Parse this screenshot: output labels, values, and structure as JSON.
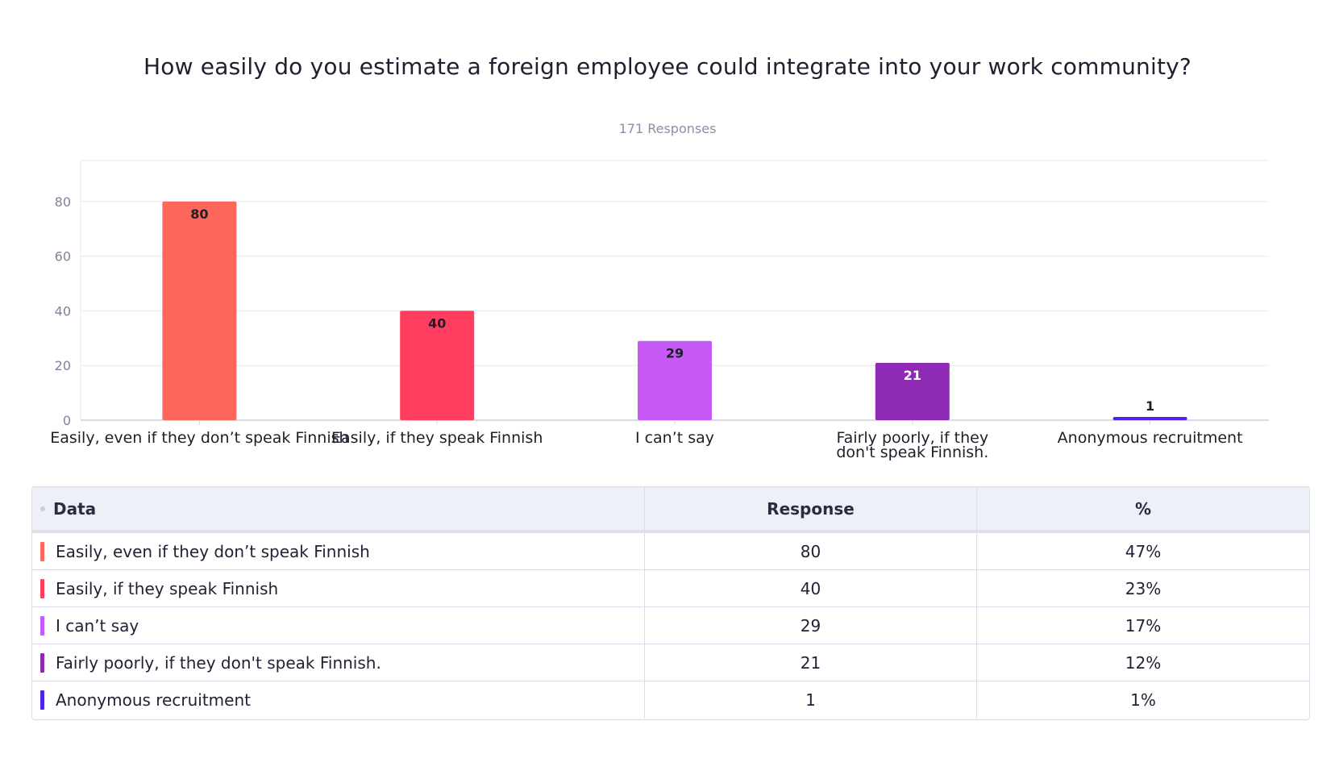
{
  "chart_data": {
    "type": "bar",
    "title": "How easily do you estimate a foreign employee could integrate into your work community?",
    "subtitle": "171 Responses",
    "categories": [
      "Easily, even if they don’t speak Finnish",
      "Easily, if they speak Finnish",
      "I can’t say",
      "Fairly poorly, if they don't speak Finnish.",
      "Anonymous recruitment"
    ],
    "x_tick_lines": [
      [
        "Easily, even if they don’t speak Finnish"
      ],
      [
        "Easily, if they speak Finnish"
      ],
      [
        "I can’t say"
      ],
      [
        "Fairly poorly, if they",
        "don't speak Finnish."
      ],
      [
        "Anonymous recruitment"
      ]
    ],
    "values": [
      80,
      40,
      29,
      21,
      1
    ],
    "colors": [
      "#fe665c",
      "#ff3d5e",
      "#c75af5",
      "#8e2ab5",
      "#5123ea"
    ],
    "ylim": [
      0,
      95
    ],
    "yticks": [
      0,
      20,
      40,
      60,
      80
    ],
    "grid": true,
    "legend": "none"
  },
  "table": {
    "headers": {
      "data": "Data",
      "response": "Response",
      "percent": "%"
    },
    "rows": [
      {
        "label": "Easily, even if they don’t speak Finnish",
        "response": "80",
        "percent": "47%",
        "color": "#fe665c"
      },
      {
        "label": "Easily, if they speak Finnish",
        "response": "40",
        "percent": "23%",
        "color": "#ff3d5e"
      },
      {
        "label": "I can’t say",
        "response": "29",
        "percent": "17%",
        "color": "#c75af5"
      },
      {
        "label": "Fairly poorly, if they don't speak Finnish.",
        "response": "21",
        "percent": "12%",
        "color": "#8e2ab5"
      },
      {
        "label": "Anonymous recruitment",
        "response": "1",
        "percent": "1%",
        "color": "#5123ea"
      }
    ]
  }
}
